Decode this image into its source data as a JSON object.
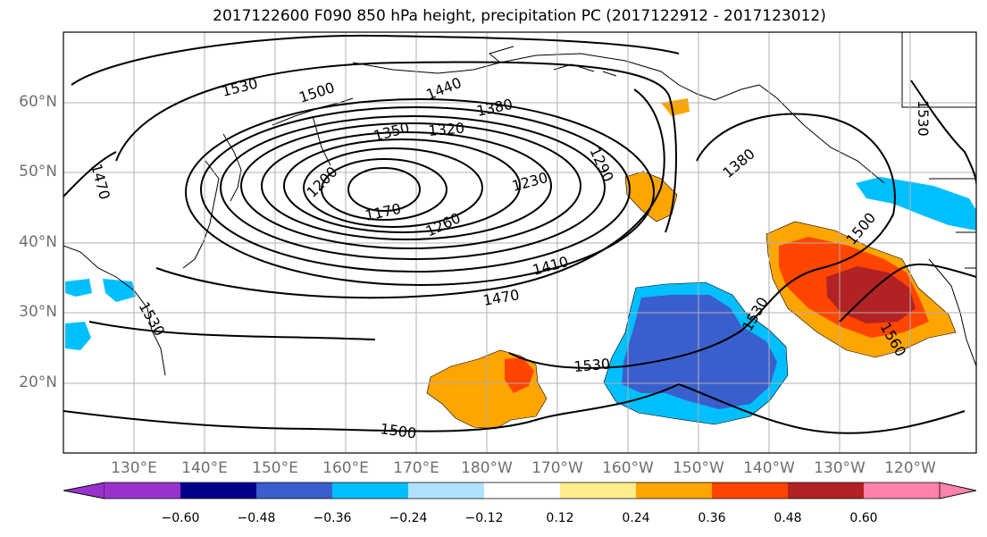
{
  "title": "2017122600 F090 850 hPa height, precipitation PC (2017122912 - 2017123012)",
  "lat_labels": [
    "60°N",
    "50°N",
    "40°N",
    "30°N",
    "20°N"
  ],
  "lon_labels": [
    "130°E",
    "140°E",
    "150°E",
    "160°E",
    "170°E",
    "180°W",
    "170°W",
    "160°W",
    "150°W",
    "140°W",
    "130°W",
    "120°W"
  ],
  "contour_labels": [
    "1530",
    "1500",
    "1440",
    "1380",
    "1350",
    "1320",
    "1200",
    "1170",
    "1230",
    "1290",
    "1260",
    "1410",
    "1470",
    "1380",
    "1500",
    "1530",
    "1530",
    "1560",
    "1530",
    "1500",
    "1470",
    "1530",
    "1530"
  ],
  "colorbar": {
    "colors": [
      "#9932cc",
      "#00008b",
      "#3a5fcd",
      "#00bfff",
      "#b0e2ff",
      "#ffffff",
      "#ffec8b",
      "#ffa500",
      "#ff4500",
      "#b22222",
      "#ff82ab"
    ],
    "labels": [
      "−0.60",
      "−0.48",
      "−0.36",
      "−0.24",
      "−0.12",
      "0.12",
      "0.24",
      "0.36",
      "0.48",
      "0.60"
    ]
  },
  "colors": {
    "grid": "#b0b0b0",
    "axis_text": "#6f6f6f",
    "contour": "#000000"
  }
}
